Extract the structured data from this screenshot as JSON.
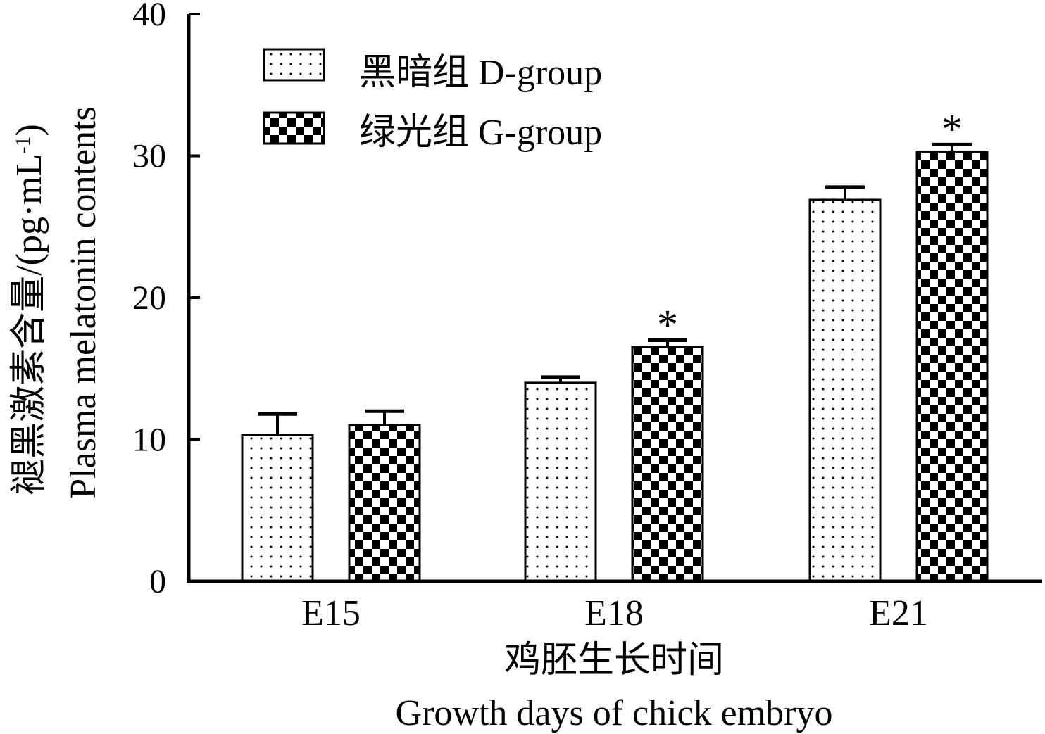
{
  "chart_data": {
    "type": "bar",
    "categories": [
      "E15",
      "E18",
      "E21"
    ],
    "series": [
      {
        "name": "黑暗组 D-group",
        "pattern": "dots",
        "values": [
          10.3,
          14.0,
          26.9
        ],
        "errors": [
          1.5,
          0.4,
          0.9
        ],
        "annotations": [
          "",
          "",
          ""
        ]
      },
      {
        "name": "绿光组 G-group",
        "pattern": "checker",
        "values": [
          11.0,
          16.5,
          30.3
        ],
        "errors": [
          1.0,
          0.5,
          0.5
        ],
        "annotations": [
          "",
          "*",
          "*"
        ]
      }
    ],
    "ylim": [
      0,
      40
    ],
    "yticks": [
      0,
      10,
      20,
      30,
      40
    ],
    "xlabel_cn": "鸡胚生长时间",
    "xlabel_en": "Growth days of chick embryo",
    "ylabel_cn": "褪黑激素含量/(pg·mL",
    "ylabel_sup": "-1",
    "ylabel_close": ")",
    "ylabel_en": "Plasma melatonin contents",
    "legend_position": "top-left",
    "grid": false,
    "colors": {
      "bar_fill": "#ffffff",
      "pattern": "#000000",
      "axis": "#000000"
    }
  }
}
